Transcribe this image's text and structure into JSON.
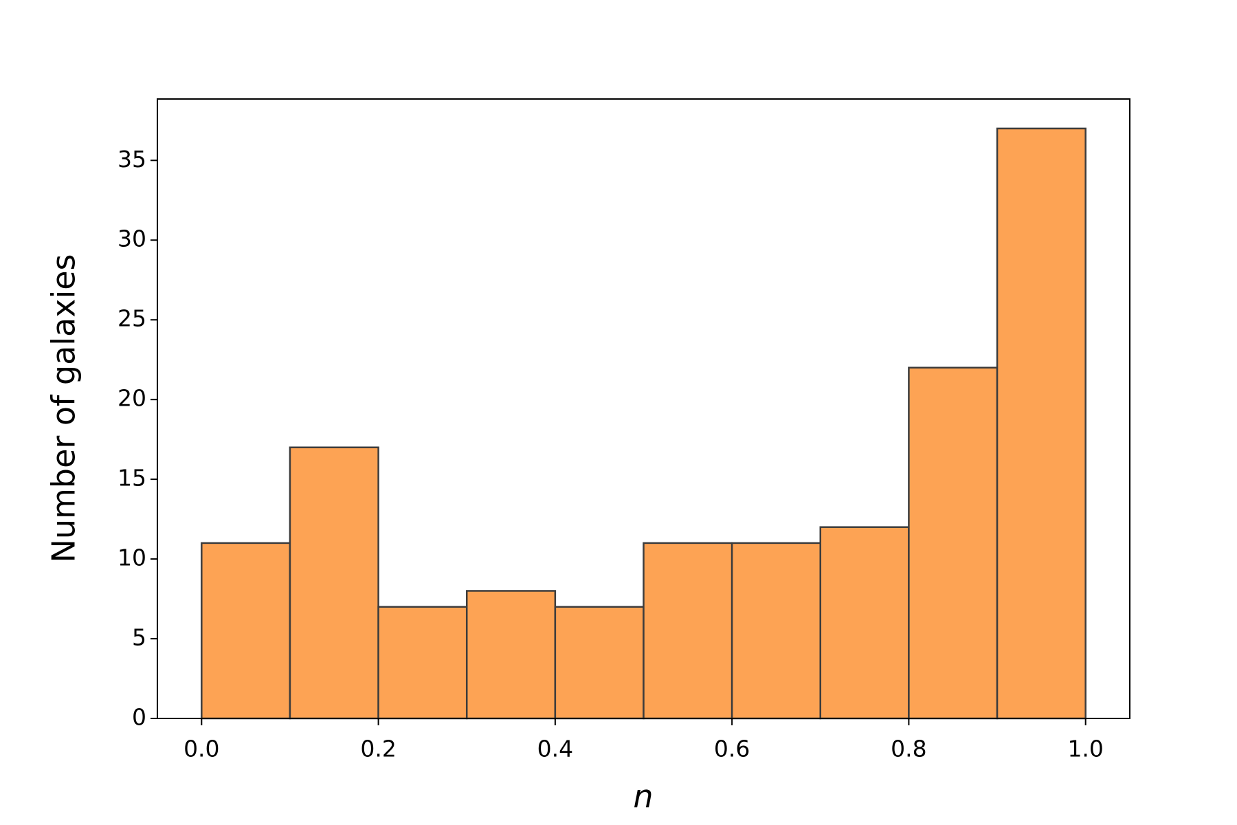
{
  "chart_data": {
    "type": "histogram",
    "xlabel": "n",
    "ylabel": "Number of galaxies",
    "bins": [
      0.0,
      0.1,
      0.2,
      0.3,
      0.4,
      0.5,
      0.6,
      0.7,
      0.8,
      0.9,
      1.0
    ],
    "values": [
      11,
      17,
      7,
      8,
      7,
      11,
      11,
      12,
      22,
      37
    ],
    "color": "#fda354",
    "edgecolor": "#3c3c3c",
    "xlim": [
      -0.05,
      1.05
    ],
    "ylim": [
      0,
      38.85
    ],
    "xticks": [
      {
        "value": 0,
        "label": "0.0"
      },
      0.2,
      0.4,
      0.6,
      0.8,
      {
        "value": 1,
        "label": "1.0"
      }
    ],
    "yticks": [
      0,
      5,
      10,
      15,
      20,
      25,
      30,
      35
    ],
    "grid": false
  }
}
